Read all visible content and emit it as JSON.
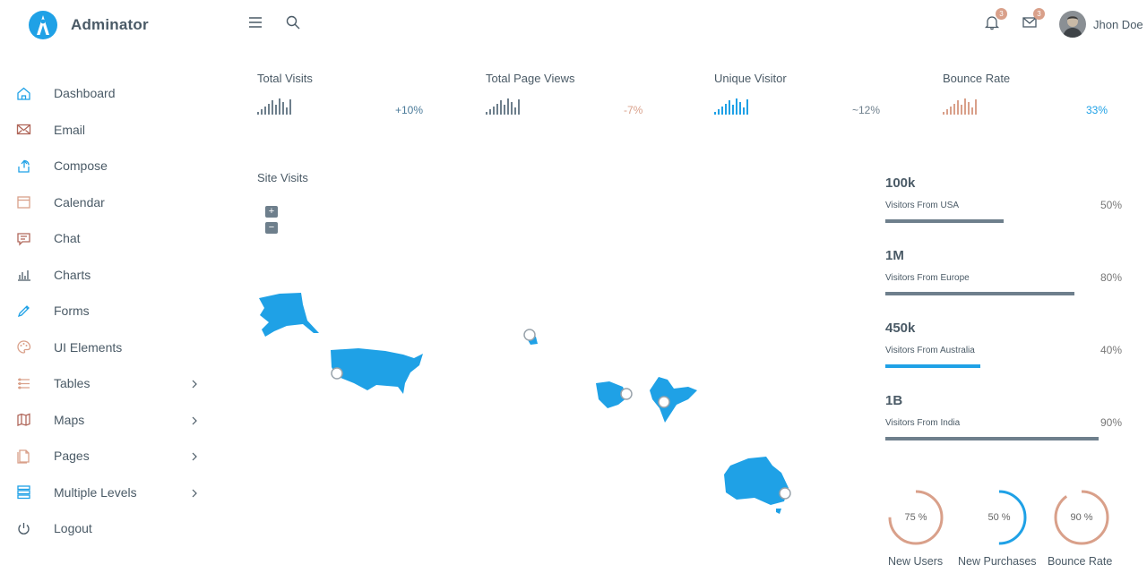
{
  "brand": {
    "name": "Adminator"
  },
  "header": {
    "notification_count": "3",
    "email_count": "3",
    "user_name": "Jhon Doe"
  },
  "colors": {
    "blue": "#1fa1e6",
    "salmon": "#d9a08a",
    "slate": "#6e7f8c"
  },
  "sidebar": {
    "items": [
      {
        "label": "Dashboard",
        "icon": "home-icon",
        "color": "#1fa1e6"
      },
      {
        "label": "Email",
        "icon": "envelope-icon",
        "color": "#b0675a"
      },
      {
        "label": "Compose",
        "icon": "share-icon",
        "color": "#1fa1e6"
      },
      {
        "label": "Calendar",
        "icon": "calendar-icon",
        "color": "#d9a08a"
      },
      {
        "label": "Chat",
        "icon": "chat-icon",
        "color": "#b0675a"
      },
      {
        "label": "Charts",
        "icon": "bar-chart-icon",
        "color": "#4a5a66"
      },
      {
        "label": "Forms",
        "icon": "pencil-icon",
        "color": "#1fa1e6"
      },
      {
        "label": "UI Elements",
        "icon": "palette-icon",
        "color": "#d9a08a"
      },
      {
        "label": "Tables",
        "icon": "table-icon",
        "color": "#d9a08a",
        "chevron": true
      },
      {
        "label": "Maps",
        "icon": "map-icon",
        "color": "#b0675a",
        "chevron": true
      },
      {
        "label": "Pages",
        "icon": "pages-icon",
        "color": "#d9a08a",
        "chevron": true
      },
      {
        "label": "Multiple Levels",
        "icon": "layers-icon",
        "color": "#1fa1e6",
        "chevron": true
      },
      {
        "label": "Logout",
        "icon": "power-icon",
        "color": "#4a5a66"
      }
    ]
  },
  "stats": [
    {
      "title": "Total Visits",
      "change": "+10%",
      "color": "#6e7f8c",
      "change_color": "#4a7a99",
      "bars": [
        3,
        5,
        8,
        11,
        14,
        10,
        16,
        12,
        7,
        15
      ]
    },
    {
      "title": "Total Page Views",
      "change": "-7%",
      "color": "#6e7f8c",
      "change_color": "#d9a08a",
      "bars": [
        3,
        5,
        8,
        11,
        14,
        10,
        16,
        12,
        7,
        15
      ]
    },
    {
      "title": "Unique Visitor",
      "change": "~12%",
      "color": "#1fa1e6",
      "change_color": "#6e7f8c",
      "bars": [
        3,
        5,
        8,
        11,
        14,
        10,
        16,
        12,
        7,
        15
      ]
    },
    {
      "title": "Bounce Rate",
      "change": "33%",
      "color": "#d9a08a",
      "change_color": "#1fa1e6",
      "bars": [
        3,
        5,
        8,
        11,
        14,
        10,
        16,
        12,
        7,
        15
      ]
    }
  ],
  "map": {
    "title": "Site Visits",
    "zoom_in": "+",
    "zoom_out": "−"
  },
  "visitors": [
    {
      "value": "100k",
      "label": "Visitors From USA",
      "pct": "50%",
      "fill": 0.5,
      "color": "#6e7f8c"
    },
    {
      "value": "1M",
      "label": "Visitors From Europe",
      "pct": "80%",
      "fill": 0.8,
      "color": "#6e7f8c"
    },
    {
      "value": "450k",
      "label": "Visitors From Australia",
      "pct": "40%",
      "fill": 0.4,
      "color": "#1fa1e6"
    },
    {
      "value": "1B",
      "label": "Visitors From India",
      "pct": "90%",
      "fill": 0.9,
      "color": "#6e7f8c"
    }
  ],
  "donuts": [
    {
      "value": "75 %",
      "fraction": 0.75,
      "label": "New Users",
      "color": "#d9a08a"
    },
    {
      "value": "50 %",
      "fraction": 0.5,
      "label": "New Purchases",
      "color": "#1fa1e6"
    },
    {
      "value": "90 %",
      "fraction": 0.9,
      "label": "Bounce Rate",
      "color": "#d9a08a"
    }
  ]
}
